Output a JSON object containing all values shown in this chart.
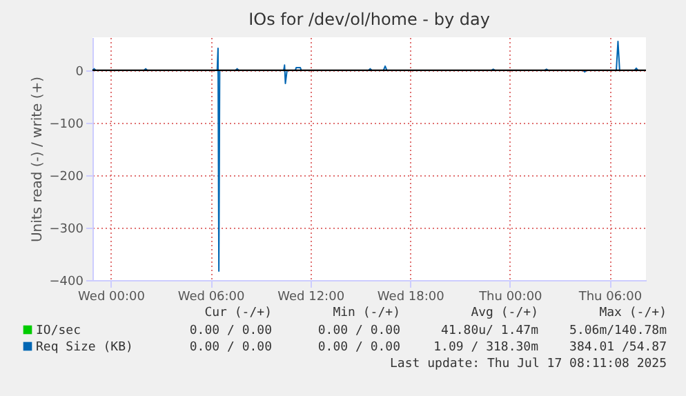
{
  "chart_data": {
    "type": "line",
    "title": "IOs for /dev/ol/home - by day",
    "ylabel": "Units read (-) / write (+)",
    "xlim": [
      "2025-07-15T22:54",
      "2025-07-17T08:11"
    ],
    "ylim": [
      -400,
      63
    ],
    "xticks": [
      {
        "value": "2025-07-16T00:00",
        "label": "Wed 00:00"
      },
      {
        "value": "2025-07-16T06:00",
        "label": "Wed 06:00"
      },
      {
        "value": "2025-07-16T12:00",
        "label": "Wed 12:00"
      },
      {
        "value": "2025-07-16T18:00",
        "label": "Wed 18:00"
      },
      {
        "value": "2025-07-17T00:00",
        "label": "Thu 00:00"
      },
      {
        "value": "2025-07-17T06:00",
        "label": "Thu 06:00"
      }
    ],
    "yticks": [
      -400,
      -300,
      -200,
      -100,
      0
    ],
    "grid": true,
    "legend": "bottom",
    "marker": "none",
    "line_style": "solid",
    "ref_lines": [
      {
        "axis": "y",
        "value": 0,
        "color": "#000000"
      }
    ],
    "series": [
      {
        "name": "IO/sec",
        "color": "#00cc00"
      },
      {
        "name": "Req Size (KB)",
        "color": "#0066b3",
        "x": [
          "2025-07-15T22:54",
          "2025-07-15T23:00",
          "2025-07-15T23:06",
          "2025-07-16T02:00",
          "2025-07-16T02:06",
          "2025-07-16T02:12",
          "2025-07-16T06:24",
          "2025-07-16T06:27",
          "2025-07-16T06:30",
          "2025-07-16T06:33",
          "2025-07-16T07:30",
          "2025-07-16T07:36",
          "2025-07-16T07:42",
          "2025-07-16T10:24",
          "2025-07-16T10:27",
          "2025-07-16T10:30",
          "2025-07-16T10:36",
          "2025-07-16T11:06",
          "2025-07-16T11:09",
          "2025-07-16T11:24",
          "2025-07-16T11:27",
          "2025-07-16T15:30",
          "2025-07-16T15:36",
          "2025-07-16T15:42",
          "2025-07-16T16:24",
          "2025-07-16T16:30",
          "2025-07-16T16:36",
          "2025-07-16T22:54",
          "2025-07-16T23:00",
          "2025-07-16T23:06",
          "2025-07-17T02:06",
          "2025-07-17T02:12",
          "2025-07-17T02:18",
          "2025-07-17T04:24",
          "2025-07-17T04:30",
          "2025-07-17T04:36",
          "2025-07-17T06:24",
          "2025-07-17T06:30",
          "2025-07-17T06:36",
          "2025-07-17T07:30",
          "2025-07-17T07:36",
          "2025-07-17T07:42",
          "2025-07-17T08:11"
        ],
        "values": [
          0,
          3,
          0,
          0,
          3,
          0,
          0,
          42,
          -383,
          0,
          0,
          3,
          0,
          0,
          10,
          -25,
          0,
          0,
          5,
          5,
          0,
          0,
          3,
          0,
          0,
          8,
          0,
          0,
          2,
          0,
          0,
          2,
          0,
          0,
          -3,
          0,
          0,
          55,
          0,
          0,
          4,
          0,
          0
        ]
      }
    ],
    "annotations": [
      "Cur (-/+)",
      "Min (-/+)",
      "Avg (-/+)",
      "Max (-/+)",
      "0.00 / 0.00",
      "0.00 / 0.00",
      "41.80u/ 1.47m",
      "5.06m/140.78m",
      "0.00 / 0.00",
      "0.00 / 0.00",
      "1.09 / 318.30m",
      "384.01 /54.87",
      "Last update: Thu Jul 17 08:11:08 2025"
    ]
  }
}
